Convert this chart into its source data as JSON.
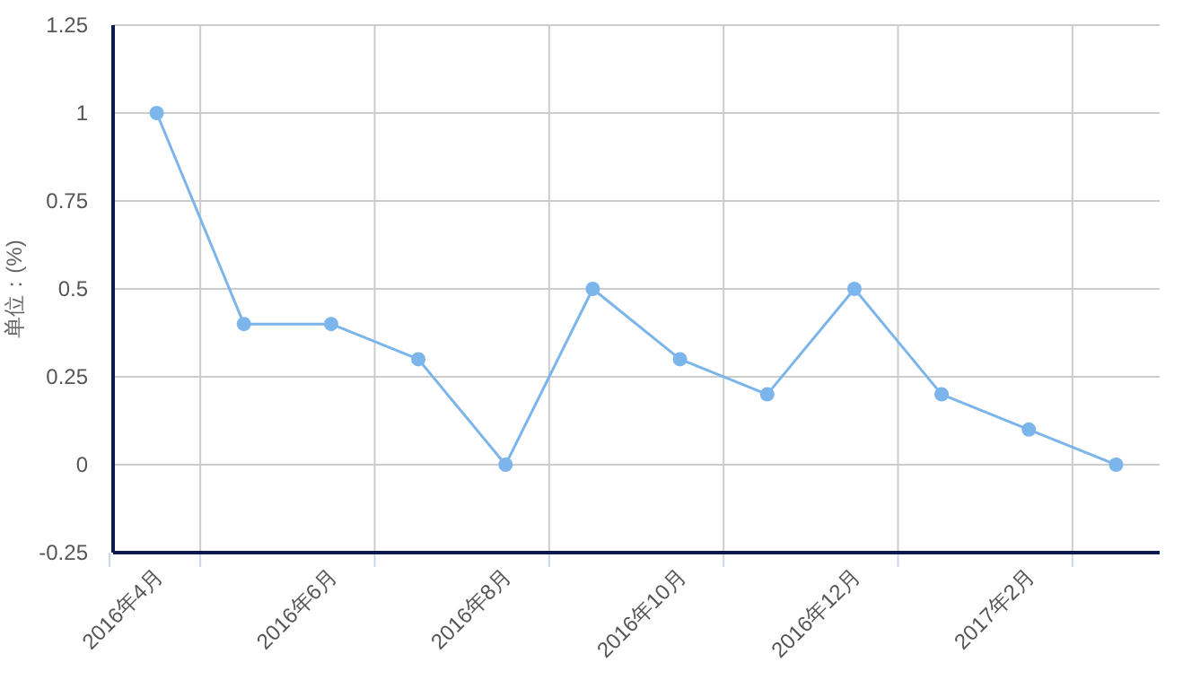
{
  "chart_data": {
    "type": "line",
    "ylabel": "单位：(%)",
    "categories": [
      "2016年4月",
      null,
      "2016年6月",
      null,
      "2016年8月",
      null,
      "2016年10月",
      null,
      "2016年12月",
      null,
      "2017年2月",
      null
    ],
    "series": [
      {
        "color": "#7cb5ec",
        "values": [
          1,
          0.4,
          0.4,
          0.3,
          0,
          0.5,
          0.3,
          0.2,
          0.5,
          0.2,
          0.1,
          0
        ]
      }
    ],
    "ylim": [
      -0.25,
      1.25
    ],
    "yticks": [
      -0.25,
      0,
      0.25,
      0.5,
      0.75,
      1,
      1.25
    ],
    "grid": true,
    "marker": "circle"
  }
}
